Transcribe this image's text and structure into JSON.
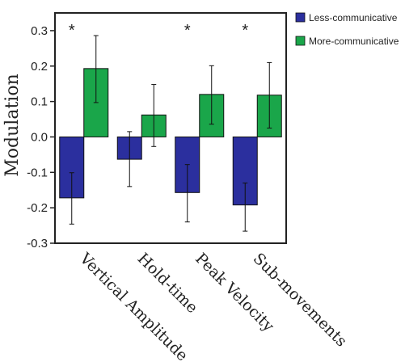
{
  "chart_data": {
    "type": "bar",
    "title": "",
    "xlabel": "",
    "ylabel": "Modulation",
    "ylim": [
      -0.3,
      0.35
    ],
    "yticks": [
      -0.3,
      -0.2,
      -0.1,
      0.0,
      0.1,
      0.2,
      0.3
    ],
    "ytick_labels": [
      "-0.3",
      "-0.2",
      "-0.1",
      "0.0",
      "0.1",
      "0.2",
      "0.3"
    ],
    "categories": [
      "Vertical Amplitude",
      "Hold-time",
      "Peak Velocity",
      "Sub-movements"
    ],
    "series": [
      {
        "name": "Less-communicative",
        "color": "#2b2f9e",
        "values": [
          -0.172,
          -0.063,
          -0.157,
          -0.192
        ],
        "err_low": [
          -0.246,
          -0.14,
          -0.24,
          -0.266
        ],
        "err_high": [
          -0.101,
          0.015,
          -0.078,
          -0.13
        ]
      },
      {
        "name": "More-communicative",
        "color": "#1aa64a",
        "values": [
          0.193,
          0.062,
          0.12,
          0.118
        ],
        "err_low": [
          0.097,
          -0.027,
          0.036,
          0.025
        ],
        "err_high": [
          0.286,
          0.148,
          0.201,
          0.21
        ]
      }
    ],
    "significance": [
      "*",
      "",
      "*",
      "*"
    ],
    "legend_position": "top-right",
    "grid": false
  }
}
